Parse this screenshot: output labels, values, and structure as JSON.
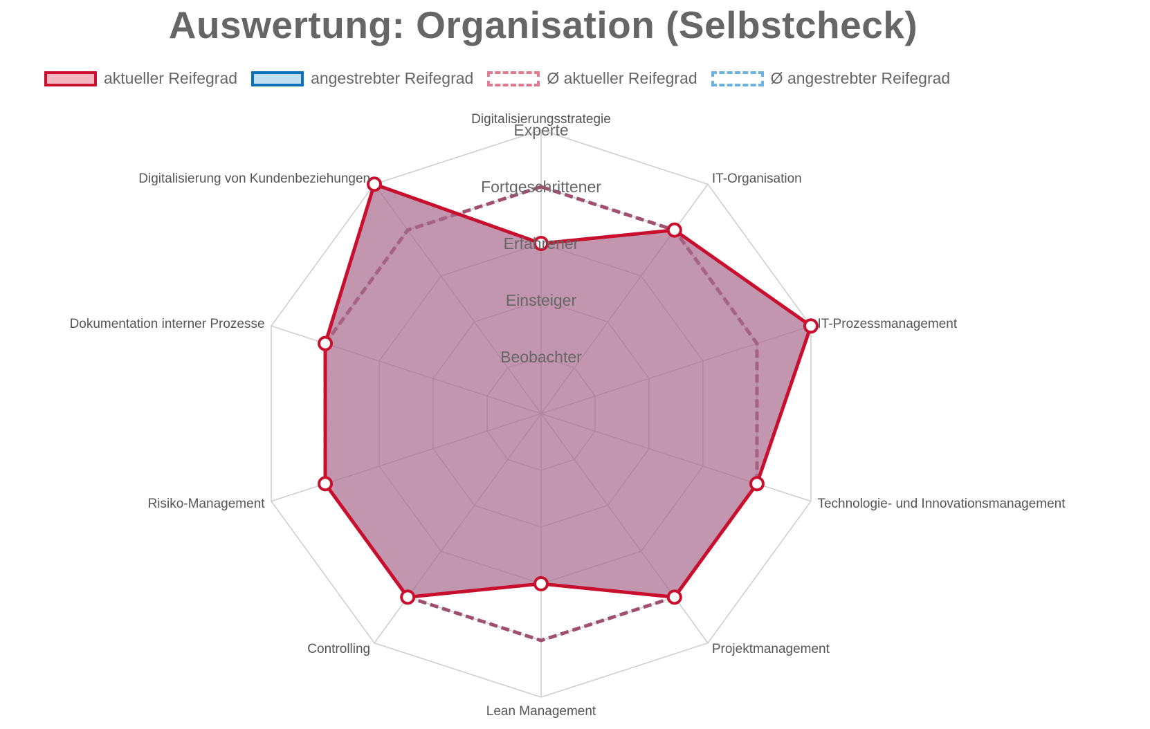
{
  "title": "Auswertung: Organisation (Selbstcheck)",
  "legend": [
    {
      "label": "aktueller Reifegrad",
      "border": "#c8102e",
      "fill": "#f4b6c0",
      "dashed": false
    },
    {
      "label": "angestrebter Reifegrad",
      "border": "#0a72ba",
      "fill": "#c5dff2",
      "dashed": false
    },
    {
      "label": "Ø aktueller Reifegrad",
      "border": "#e07a8c",
      "fill": "#ffffff",
      "dashed": true
    },
    {
      "label": "Ø angestrebter Reifegrad",
      "border": "#6ab2e0",
      "fill": "#ffffff",
      "dashed": true
    }
  ],
  "chart_data": {
    "type": "radar",
    "title": "Auswertung: Organisation (Selbstcheck)",
    "categories": [
      "Digitalisierungsstrategie",
      "IT-Organisation",
      "IT-Prozessmanagement",
      "Technologie- und Innovationsmanagement",
      "Projektmanagement",
      "Lean Management",
      "Controlling",
      "Risiko-Management",
      "Dokumentation interner Prozesse",
      "Digitalisierung von Kundenbeziehungen"
    ],
    "levels": [
      "Beobachter",
      "Einsteiger",
      "Erfahrener",
      "Fortgeschrittener",
      "Experte"
    ],
    "range": [
      0,
      5
    ],
    "series": [
      {
        "name": "aktueller Reifegrad",
        "color": "#c8102e",
        "values": [
          3.0,
          4.0,
          5.0,
          4.0,
          4.0,
          3.0,
          4.0,
          4.0,
          4.0,
          5.0
        ]
      },
      {
        "name": "Ø aktueller Reifegrad",
        "color": "#a0506e",
        "values": [
          4.0,
          4.0,
          4.0,
          4.0,
          4.0,
          4.0,
          4.0,
          4.0,
          4.0,
          4.0
        ]
      }
    ],
    "colors": {
      "grid": "#cccccc",
      "fill": "#a86a8c",
      "point_fill": "#ffffff"
    }
  }
}
